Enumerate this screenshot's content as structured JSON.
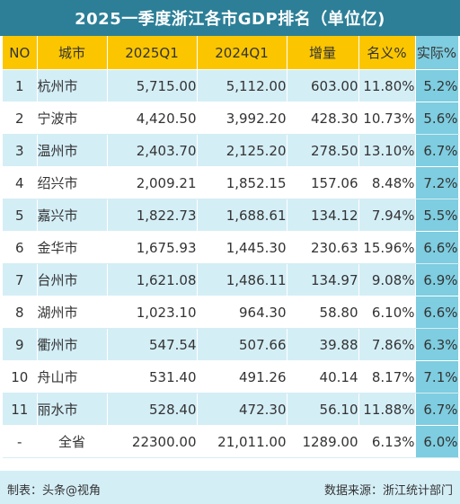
{
  "title": "2025一季度浙江各市GDP排名（单位亿)",
  "headers": [
    "NO",
    "城市",
    "2025Q1",
    "2024Q1",
    "增量",
    "名义%",
    "实际%"
  ],
  "rows": [
    {
      "no": "1",
      "city": "杭州市",
      "q2025": "5,715.00",
      "q2024": "5,112.00",
      "inc": "603.00",
      "nominal": "11.80%",
      "real": "5.2%"
    },
    {
      "no": "2",
      "city": "宁波市",
      "q2025": "4,420.50",
      "q2024": "3,992.20",
      "inc": "428.30",
      "nominal": "10.73%",
      "real": "5.6%"
    },
    {
      "no": "3",
      "city": "温州市",
      "q2025": "2,403.70",
      "q2024": "2,125.20",
      "inc": "278.50",
      "nominal": "13.10%",
      "real": "6.7%"
    },
    {
      "no": "4",
      "city": "绍兴市",
      "q2025": "2,009.21",
      "q2024": "1,852.15",
      "inc": "157.06",
      "nominal": "8.48%",
      "real": "7.2%"
    },
    {
      "no": "5",
      "city": "嘉兴市",
      "q2025": "1,822.73",
      "q2024": "1,688.61",
      "inc": "134.12",
      "nominal": "7.94%",
      "real": "5.5%"
    },
    {
      "no": "6",
      "city": "金华市",
      "q2025": "1,675.93",
      "q2024": "1,445.30",
      "inc": "230.63",
      "nominal": "15.96%",
      "real": "6.6%"
    },
    {
      "no": "7",
      "city": "台州市",
      "q2025": "1,621.08",
      "q2024": "1,486.11",
      "inc": "134.97",
      "nominal": "9.08%",
      "real": "6.9%"
    },
    {
      "no": "8",
      "city": "湖州市",
      "q2025": "1,023.10",
      "q2024": "964.30",
      "inc": "58.80",
      "nominal": "6.10%",
      "real": "6.6%"
    },
    {
      "no": "9",
      "city": "衢州市",
      "q2025": "547.54",
      "q2024": "507.66",
      "inc": "39.88",
      "nominal": "7.86%",
      "real": "6.3%"
    },
    {
      "no": "10",
      "city": "舟山市",
      "q2025": "531.40",
      "q2024": "491.26",
      "inc": "40.14",
      "nominal": "8.17%",
      "real": "7.1%"
    },
    {
      "no": "11",
      "city": "丽水市",
      "q2025": "528.40",
      "q2024": "472.30",
      "inc": "56.10",
      "nominal": "11.88%",
      "real": "6.7%"
    },
    {
      "no": "-",
      "city": "全省",
      "q2025": "22300.00",
      "q2024": "21,011.00",
      "inc": "1289.00",
      "nominal": "6.13%",
      "real": "6.0%"
    }
  ],
  "footer": {
    "left": "制表：头条@视角",
    "right": "数据来源：浙江统计部门"
  },
  "colors": {
    "title_bg": "#2c7f97",
    "header_bg": "#fbc600",
    "real_col_bg": "#7ecde0",
    "stripe_bg": "#d4eef6"
  }
}
